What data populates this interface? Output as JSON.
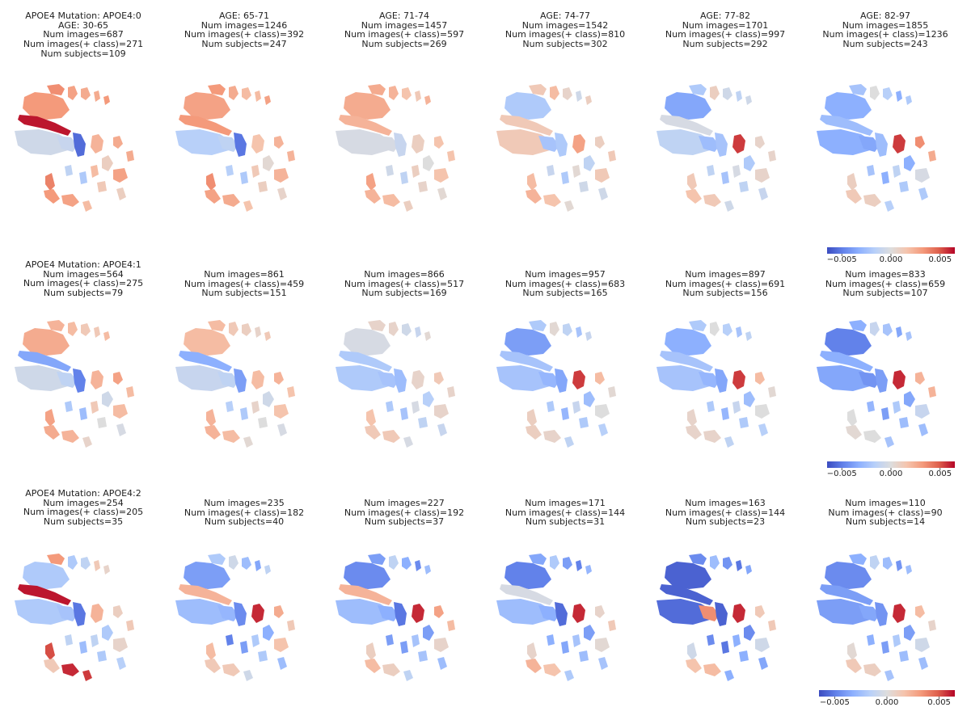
{
  "chart_data": {
    "type": "heatmap",
    "description": "Grid of brain-region heatmaps: rows = APOE4 mutation groups, columns = age groups",
    "colormap": "coolwarm",
    "colors": {
      "low": "#3b4cc0",
      "mid": "#dddddd",
      "high": "#b40426"
    },
    "rows": [
      {
        "mutation_label": "APOE4 Mutation: APOE4:0",
        "panels": [
          {
            "age": "AGE: 30-65",
            "num_images": "Num images=687",
            "num_pos": "Num images(+ class)=271",
            "num_subjects": "Num subjects=109",
            "regions": [
              0.5,
              0.55,
              0.45,
              0.4,
              0.4,
              0.5,
              0.95,
              -0.1,
              -0.15,
              -0.85,
              0.35,
              0.4,
              0.15,
              0.3,
              0.45,
              -0.3,
              0.2,
              0.6,
              0.5,
              0.45,
              0.3,
              -0.2,
              0.15,
              0.4
            ]
          },
          {
            "age": "AGE: 65-71",
            "num_images": "Num images=1246",
            "num_pos": "Num images(+ class)=392",
            "num_subjects": "Num subjects=247",
            "regions": [
              0.45,
              0.5,
              0.4,
              0.3,
              0.3,
              0.45,
              0.5,
              -0.25,
              -0.2,
              -0.8,
              0.25,
              0.35,
              0.05,
              0.2,
              0.35,
              -0.3,
              0.15,
              0.55,
              0.45,
              0.4,
              0.25,
              -0.25,
              0.1,
              0.35
            ]
          },
          {
            "age": "AGE: 71-74",
            "num_images": "Num images=1457",
            "num_pos": "Num images(+ class)=597",
            "num_subjects": "Num subjects=269",
            "regions": [
              0.4,
              0.4,
              0.35,
              0.25,
              0.2,
              0.35,
              0.35,
              -0.05,
              -0.05,
              -0.15,
              0.15,
              0.25,
              0.0,
              0.15,
              0.25,
              -0.2,
              0.1,
              0.45,
              0.35,
              0.3,
              0.15,
              -0.1,
              0.05,
              0.25
            ]
          },
          {
            "age": "AGE: 74-77",
            "num_images": "Num images=1542",
            "num_pos": "Num images(+ class)=810",
            "num_subjects": "Num subjects=302",
            "regions": [
              -0.3,
              0.2,
              0.3,
              0.1,
              -0.1,
              0.15,
              0.2,
              0.2,
              -0.35,
              -0.3,
              0.45,
              0.15,
              -0.2,
              0.05,
              0.2,
              -0.3,
              -0.1,
              0.3,
              0.35,
              0.25,
              0.05,
              -0.15,
              -0.1,
              0.2
            ]
          },
          {
            "age": "AGE: 77-82",
            "num_images": "Num images=1701",
            "num_pos": "Num images(+ class)=997",
            "num_subjects": "Num subjects=292",
            "regions": [
              -0.55,
              -0.3,
              0.15,
              -0.1,
              -0.2,
              -0.1,
              -0.05,
              -0.2,
              -0.4,
              -0.35,
              0.85,
              0.1,
              -0.3,
              -0.05,
              0.1,
              -0.35,
              -0.2,
              0.2,
              0.25,
              0.2,
              -0.1,
              -0.2,
              -0.15,
              0.1
            ]
          },
          {
            "age": "AGE: 82-97",
            "num_images": "Num images=1855",
            "num_pos": "Num images(+ class)=1236",
            "num_subjects": "Num subjects=243",
            "regions": [
              -0.5,
              -0.35,
              0.0,
              -0.25,
              -0.5,
              -0.3,
              -0.4,
              -0.5,
              -0.55,
              -0.4,
              0.85,
              0.55,
              -0.5,
              -0.2,
              -0.05,
              -0.5,
              -0.3,
              0.15,
              0.2,
              0.15,
              -0.25,
              -0.35,
              -0.3,
              0.4
            ]
          }
        ]
      },
      {
        "mutation_label": "APOE4 Mutation: APOE4:1",
        "panels": [
          {
            "num_images": "Num images=564",
            "num_pos": "Num images(+ class)=275",
            "num_subjects": "Num subjects=79",
            "regions": [
              0.4,
              0.35,
              0.3,
              0.2,
              0.2,
              0.3,
              -0.55,
              -0.1,
              -0.2,
              -0.75,
              0.35,
              0.45,
              -0.1,
              0.2,
              0.3,
              -0.4,
              0.0,
              0.45,
              0.4,
              0.35,
              0.1,
              -0.3,
              -0.05,
              0.3
            ]
          },
          {
            "num_images": "Num images=861",
            "num_pos": "Num images(+ class)=459",
            "num_subjects": "Num subjects=151",
            "regions": [
              0.3,
              0.3,
              0.2,
              0.15,
              0.1,
              0.2,
              -0.5,
              -0.15,
              -0.2,
              -0.6,
              0.3,
              0.35,
              -0.1,
              0.1,
              0.25,
              -0.3,
              0.0,
              0.35,
              0.35,
              0.3,
              0.05,
              -0.25,
              -0.05,
              0.25
            ]
          },
          {
            "num_images": "Num images=866",
            "num_pos": "Num images(+ class)=517",
            "num_subjects": "Num subjects=169",
            "regions": [
              -0.05,
              0.1,
              0.1,
              -0.1,
              -0.15,
              0.05,
              -0.3,
              -0.3,
              -0.35,
              -0.4,
              0.1,
              0.2,
              -0.25,
              -0.05,
              0.1,
              -0.35,
              -0.2,
              0.25,
              0.2,
              0.2,
              -0.05,
              -0.3,
              -0.15,
              0.1
            ]
          },
          {
            "num_images": "Num images=957",
            "num_pos": "Num images(+ class)=683",
            "num_subjects": "Num subjects=165",
            "regions": [
              -0.6,
              -0.3,
              0.05,
              -0.2,
              -0.35,
              -0.15,
              -0.35,
              -0.35,
              -0.45,
              -0.55,
              0.85,
              0.3,
              -0.4,
              -0.15,
              0.0,
              -0.45,
              -0.3,
              0.15,
              0.15,
              0.1,
              -0.2,
              -0.3,
              -0.25,
              0.05
            ]
          },
          {
            "num_images": "Num images=897",
            "num_pos": "Num images(+ class)=691",
            "num_subjects": "Num subjects=156",
            "regions": [
              -0.5,
              -0.3,
              0.0,
              -0.25,
              -0.35,
              -0.2,
              -0.35,
              -0.35,
              -0.45,
              -0.55,
              0.85,
              0.3,
              -0.4,
              -0.15,
              0.0,
              -0.45,
              -0.3,
              0.1,
              0.1,
              0.1,
              -0.2,
              -0.3,
              -0.25,
              0.05
            ]
          },
          {
            "num_images": "Num images=833",
            "num_pos": "Num images(+ class)=659",
            "num_subjects": "Num subjects=107",
            "regions": [
              -0.75,
              -0.5,
              -0.15,
              -0.35,
              -0.55,
              -0.35,
              -0.5,
              -0.55,
              -0.65,
              -0.6,
              0.9,
              0.35,
              -0.55,
              -0.3,
              -0.15,
              -0.6,
              -0.4,
              0.0,
              0.05,
              0.0,
              -0.35,
              -0.45,
              -0.4,
              0.35
            ]
          }
        ]
      },
      {
        "mutation_label": "APOE4 Mutation: APOE4:2",
        "panels": [
          {
            "num_images": "Num images=254",
            "num_pos": "Num images(+ class)=205",
            "num_subjects": "Num subjects=35",
            "regions": [
              -0.3,
              0.5,
              -0.3,
              -0.2,
              0.2,
              0.1,
              0.95,
              -0.3,
              -0.35,
              -0.8,
              0.35,
              0.15,
              -0.3,
              -0.2,
              0.1,
              -0.4,
              -0.3,
              0.8,
              0.2,
              0.9,
              0.85,
              -0.2,
              -0.25,
              0.2
            ]
          },
          {
            "num_images": "Num images=235",
            "num_pos": "Num images(+ class)=182",
            "num_subjects": "Num subjects=40",
            "regions": [
              -0.6,
              -0.3,
              -0.1,
              -0.4,
              -0.55,
              -0.2,
              0.35,
              -0.4,
              -0.45,
              -0.7,
              0.9,
              0.4,
              -0.5,
              -0.3,
              0.25,
              -0.6,
              -0.3,
              0.3,
              0.2,
              0.2,
              -0.1,
              -0.75,
              -0.4,
              0.2
            ]
          },
          {
            "num_images": "Num images=227",
            "num_pos": "Num images(+ class)=192",
            "num_subjects": "Num subjects=37",
            "regions": [
              -0.7,
              -0.6,
              -0.2,
              -0.5,
              -0.7,
              -0.4,
              0.35,
              -0.4,
              -0.5,
              -0.8,
              0.9,
              0.45,
              -0.6,
              -0.35,
              0.1,
              -0.6,
              -0.35,
              0.15,
              0.3,
              0.15,
              -0.2,
              -0.6,
              -0.4,
              0.3
            ]
          },
          {
            "num_images": "Num images=171",
            "num_pos": "Num images(+ class)=144",
            "num_subjects": "Num subjects=31",
            "regions": [
              -0.75,
              -0.55,
              -0.3,
              -0.6,
              -0.75,
              -0.45,
              -0.05,
              -0.4,
              -0.5,
              -0.85,
              0.9,
              0.1,
              -0.6,
              -0.35,
              0.05,
              -0.55,
              -0.4,
              0.1,
              0.35,
              0.25,
              -0.3,
              -0.5,
              -0.35,
              0.2
            ]
          },
          {
            "num_images": "Num images=163",
            "num_pos": "Num images(+ class)=144",
            "num_subjects": "Num subjects=23",
            "regions": [
              -0.9,
              -0.7,
              -0.4,
              -0.65,
              -0.8,
              -0.55,
              -0.9,
              -0.85,
              0.55,
              -0.9,
              0.9,
              0.2,
              -0.7,
              -0.5,
              -0.1,
              -0.8,
              -0.5,
              -0.1,
              0.25,
              0.3,
              -0.5,
              -0.7,
              -0.55,
              0.2
            ]
          },
          {
            "num_images": "Num images=110",
            "num_pos": "Num images(+ class)=90",
            "num_subjects": "Num subjects=14",
            "regions": [
              -0.7,
              -0.5,
              -0.2,
              -0.4,
              -0.65,
              -0.4,
              -0.6,
              -0.6,
              -0.55,
              -0.65,
              0.9,
              0.3,
              -0.6,
              -0.3,
              -0.1,
              -0.6,
              -0.4,
              0.05,
              0.2,
              0.15,
              -0.35,
              -0.5,
              -0.4,
              0.1
            ]
          }
        ]
      }
    ],
    "colorbar": {
      "range": [
        -0.0065,
        0.0065
      ],
      "ticks": [
        "−0.005",
        "0.000",
        "0.005"
      ],
      "tick_values": [
        -0.005,
        0.0,
        0.005
      ]
    }
  }
}
